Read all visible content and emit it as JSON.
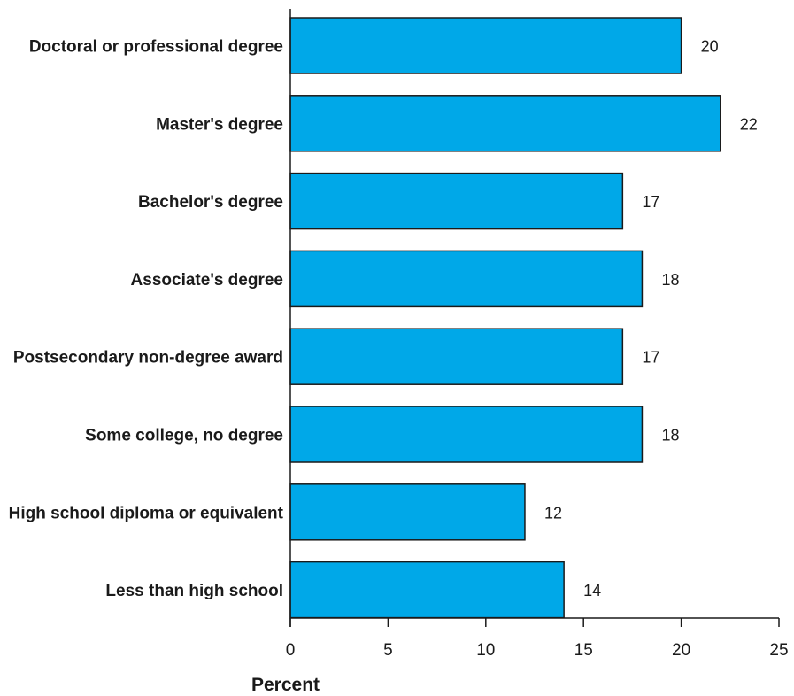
{
  "chart_data": {
    "type": "bar",
    "orientation": "horizontal",
    "categories": [
      "Doctoral or professional degree",
      "Master's degree",
      "Bachelor's degree",
      "Associate's degree",
      "Postsecondary non-degree award",
      "Some college, no degree",
      "High school diploma or equivalent",
      "Less than high school"
    ],
    "values": [
      20,
      22,
      17,
      18,
      17,
      18,
      12,
      14
    ],
    "value_labels": [
      "20",
      "22",
      "17",
      "18",
      "17",
      "18",
      "12",
      "14"
    ],
    "xlabel": "Percent",
    "xlim": [
      0,
      25
    ],
    "xticks": [
      0,
      5,
      10,
      15,
      20,
      25
    ],
    "xtick_labels": [
      "0",
      "5",
      "10",
      "15",
      "20",
      "25"
    ],
    "grid": false,
    "bar_color": "#00a8e8",
    "bar_outline_color": "#1a1a1a"
  }
}
